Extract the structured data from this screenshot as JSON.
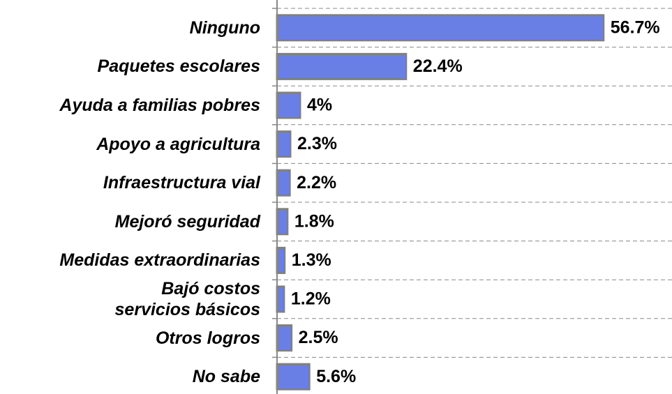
{
  "chart_data": {
    "type": "bar",
    "orientation": "horizontal",
    "categories": [
      "Ninguno",
      "Paquetes escolares",
      "Ayuda a familias pobres",
      "Apoyo a agricultura",
      "Infraestructura vial",
      "Mejoró seguridad",
      "Medidas extraordinarias",
      "Bajó costos\nservicios básicos",
      "Otros logros",
      "No sabe"
    ],
    "values": [
      56.7,
      22.4,
      4,
      2.3,
      2.2,
      1.8,
      1.3,
      1.2,
      2.5,
      5.6
    ],
    "value_labels": [
      "56.7%",
      "22.4%",
      "4%",
      "2.3%",
      "2.2%",
      "1.8%",
      "1.3%",
      "1.2%",
      "2.5%",
      "5.6%"
    ],
    "color": "#6a7fe6",
    "xlim": [
      0,
      60
    ],
    "grid": true
  }
}
